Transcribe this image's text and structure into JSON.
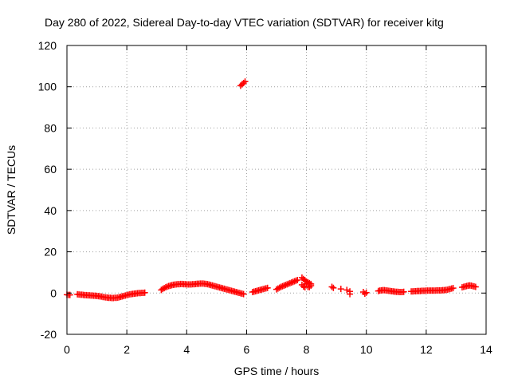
{
  "chart_data": {
    "type": "scatter",
    "title": "Day 280 of 2022, Sidereal Day-to-day VTEC variation (SDTVAR) for receiver kitg",
    "xlabel": "GPS time / hours",
    "ylabel": "SDTVAR / TECUs",
    "xlim": [
      0,
      14
    ],
    "ylim": [
      -20,
      120
    ],
    "xticks": [
      0,
      2,
      4,
      6,
      8,
      10,
      12,
      14
    ],
    "yticks": [
      -20,
      0,
      20,
      40,
      60,
      80,
      100,
      120
    ],
    "grid": true,
    "marker": "+",
    "series_color": "#ff0000",
    "points": [
      [
        0.0,
        -0.8
      ],
      [
        0.05,
        -0.9
      ],
      [
        0.1,
        -0.9
      ],
      [
        0.35,
        -0.6
      ],
      [
        0.4,
        -0.7
      ],
      [
        0.45,
        -0.8
      ],
      [
        0.5,
        -0.8
      ],
      [
        0.55,
        -0.9
      ],
      [
        0.6,
        -1.0
      ],
      [
        0.65,
        -1.0
      ],
      [
        0.7,
        -1.1
      ],
      [
        0.75,
        -1.1
      ],
      [
        0.8,
        -1.2
      ],
      [
        0.85,
        -1.2
      ],
      [
        0.9,
        -1.3
      ],
      [
        0.95,
        -1.3
      ],
      [
        1.0,
        -1.4
      ],
      [
        1.05,
        -1.5
      ],
      [
        1.1,
        -1.6
      ],
      [
        1.15,
        -1.7
      ],
      [
        1.2,
        -1.9
      ],
      [
        1.25,
        -2.0
      ],
      [
        1.3,
        -2.1
      ],
      [
        1.35,
        -2.2
      ],
      [
        1.4,
        -2.3
      ],
      [
        1.45,
        -2.3
      ],
      [
        1.5,
        -2.4
      ],
      [
        1.55,
        -2.4
      ],
      [
        1.6,
        -2.3
      ],
      [
        1.65,
        -2.3
      ],
      [
        1.7,
        -2.2
      ],
      [
        1.75,
        -2.0
      ],
      [
        1.8,
        -1.8
      ],
      [
        1.85,
        -1.6
      ],
      [
        1.9,
        -1.4
      ],
      [
        1.95,
        -1.2
      ],
      [
        2.0,
        -1.0
      ],
      [
        2.05,
        -0.8
      ],
      [
        2.1,
        -0.6
      ],
      [
        2.15,
        -0.5
      ],
      [
        2.2,
        -0.4
      ],
      [
        2.25,
        -0.3
      ],
      [
        2.3,
        -0.2
      ],
      [
        2.35,
        -0.1
      ],
      [
        2.4,
        0.0
      ],
      [
        2.45,
        0.0
      ],
      [
        2.5,
        0.1
      ],
      [
        2.55,
        0.1
      ],
      [
        2.6,
        0.2
      ],
      [
        3.15,
        1.5
      ],
      [
        3.2,
        2.0
      ],
      [
        3.25,
        2.4
      ],
      [
        3.3,
        2.8
      ],
      [
        3.35,
        3.1
      ],
      [
        3.4,
        3.4
      ],
      [
        3.45,
        3.6
      ],
      [
        3.5,
        3.8
      ],
      [
        3.55,
        4.0
      ],
      [
        3.6,
        4.1
      ],
      [
        3.65,
        4.2
      ],
      [
        3.7,
        4.3
      ],
      [
        3.75,
        4.3
      ],
      [
        3.8,
        4.4
      ],
      [
        3.85,
        4.4
      ],
      [
        3.9,
        4.3
      ],
      [
        3.95,
        4.3
      ],
      [
        4.0,
        4.2
      ],
      [
        4.05,
        4.2
      ],
      [
        4.1,
        4.2
      ],
      [
        4.15,
        4.2
      ],
      [
        4.2,
        4.3
      ],
      [
        4.25,
        4.3
      ],
      [
        4.3,
        4.4
      ],
      [
        4.35,
        4.5
      ],
      [
        4.4,
        4.5
      ],
      [
        4.45,
        4.6
      ],
      [
        4.5,
        4.6
      ],
      [
        4.55,
        4.6
      ],
      [
        4.6,
        4.5
      ],
      [
        4.65,
        4.4
      ],
      [
        4.7,
        4.3
      ],
      [
        4.75,
        4.1
      ],
      [
        4.8,
        3.9
      ],
      [
        4.85,
        3.7
      ],
      [
        4.9,
        3.5
      ],
      [
        4.95,
        3.3
      ],
      [
        5.0,
        3.1
      ],
      [
        5.05,
        2.9
      ],
      [
        5.1,
        2.7
      ],
      [
        5.15,
        2.5
      ],
      [
        5.2,
        2.3
      ],
      [
        5.25,
        2.1
      ],
      [
        5.3,
        1.9
      ],
      [
        5.35,
        1.7
      ],
      [
        5.4,
        1.5
      ],
      [
        5.45,
        1.3
      ],
      [
        5.5,
        1.1
      ],
      [
        5.55,
        0.9
      ],
      [
        5.6,
        0.7
      ],
      [
        5.65,
        0.5
      ],
      [
        5.7,
        0.3
      ],
      [
        5.75,
        0.1
      ],
      [
        5.8,
        -0.1
      ],
      [
        5.85,
        -0.3
      ],
      [
        5.9,
        -0.5
      ],
      [
        5.8,
        100.5
      ],
      [
        5.85,
        101.2
      ],
      [
        5.9,
        101.8
      ],
      [
        5.95,
        102.5
      ],
      [
        6.2,
        0.5
      ],
      [
        6.25,
        0.7
      ],
      [
        6.3,
        0.9
      ],
      [
        6.35,
        1.1
      ],
      [
        6.4,
        1.3
      ],
      [
        6.45,
        1.5
      ],
      [
        6.5,
        1.7
      ],
      [
        6.55,
        1.9
      ],
      [
        6.6,
        2.1
      ],
      [
        6.65,
        2.3
      ],
      [
        6.7,
        2.5
      ],
      [
        7.0,
        1.8
      ],
      [
        7.05,
        2.2
      ],
      [
        7.1,
        2.6
      ],
      [
        7.15,
        3.0
      ],
      [
        7.2,
        3.3
      ],
      [
        7.25,
        3.6
      ],
      [
        7.3,
        3.9
      ],
      [
        7.35,
        4.2
      ],
      [
        7.4,
        4.5
      ],
      [
        7.45,
        4.8
      ],
      [
        7.5,
        5.1
      ],
      [
        7.55,
        5.4
      ],
      [
        7.6,
        5.7
      ],
      [
        7.65,
        6.0
      ],
      [
        7.7,
        6.3
      ],
      [
        7.85,
        7.5
      ],
      [
        7.85,
        4.0
      ],
      [
        7.9,
        6.8
      ],
      [
        7.9,
        3.2
      ],
      [
        7.95,
        6.2
      ],
      [
        7.95,
        2.8
      ],
      [
        8.0,
        5.6
      ],
      [
        8.0,
        4.5
      ],
      [
        8.05,
        5.2
      ],
      [
        8.05,
        3.0
      ],
      [
        8.1,
        4.8
      ],
      [
        8.1,
        2.9
      ],
      [
        8.15,
        4.4
      ],
      [
        8.15,
        3.6
      ],
      [
        8.85,
        3.0
      ],
      [
        8.9,
        2.5
      ],
      [
        9.15,
        2.0
      ],
      [
        9.35,
        1.5
      ],
      [
        9.45,
        0.8
      ],
      [
        9.45,
        -0.5
      ],
      [
        9.9,
        0.5
      ],
      [
        9.95,
        -0.3
      ],
      [
        10.0,
        0.2
      ],
      [
        10.4,
        1.0
      ],
      [
        10.45,
        1.2
      ],
      [
        10.5,
        1.3
      ],
      [
        10.55,
        1.4
      ],
      [
        10.6,
        1.4
      ],
      [
        10.65,
        1.3
      ],
      [
        10.7,
        1.2
      ],
      [
        10.75,
        1.1
      ],
      [
        10.8,
        1.0
      ],
      [
        10.85,
        0.9
      ],
      [
        10.9,
        0.8
      ],
      [
        10.95,
        0.7
      ],
      [
        11.0,
        0.6
      ],
      [
        11.05,
        0.6
      ],
      [
        11.1,
        0.5
      ],
      [
        11.15,
        0.5
      ],
      [
        11.2,
        0.5
      ],
      [
        11.25,
        0.6
      ],
      [
        11.5,
        0.8
      ],
      [
        11.55,
        0.8
      ],
      [
        11.6,
        0.9
      ],
      [
        11.65,
        0.9
      ],
      [
        11.7,
        1.0
      ],
      [
        11.75,
        1.0
      ],
      [
        11.8,
        1.0
      ],
      [
        11.85,
        1.1
      ],
      [
        11.9,
        1.1
      ],
      [
        11.95,
        1.1
      ],
      [
        12.0,
        1.2
      ],
      [
        12.05,
        1.2
      ],
      [
        12.1,
        1.2
      ],
      [
        12.15,
        1.2
      ],
      [
        12.2,
        1.2
      ],
      [
        12.25,
        1.2
      ],
      [
        12.3,
        1.2
      ],
      [
        12.35,
        1.3
      ],
      [
        12.4,
        1.3
      ],
      [
        12.45,
        1.3
      ],
      [
        12.5,
        1.3
      ],
      [
        12.55,
        1.4
      ],
      [
        12.6,
        1.4
      ],
      [
        12.65,
        1.5
      ],
      [
        12.7,
        1.6
      ],
      [
        12.75,
        1.8
      ],
      [
        12.8,
        2.0
      ],
      [
        12.85,
        2.2
      ],
      [
        12.9,
        2.4
      ],
      [
        13.2,
        2.8
      ],
      [
        13.25,
        3.0
      ],
      [
        13.3,
        3.2
      ],
      [
        13.35,
        3.4
      ],
      [
        13.4,
        3.6
      ],
      [
        13.45,
        3.7
      ],
      [
        13.5,
        3.6
      ],
      [
        13.55,
        3.4
      ],
      [
        13.6,
        3.2
      ],
      [
        13.65,
        3.0
      ]
    ]
  }
}
